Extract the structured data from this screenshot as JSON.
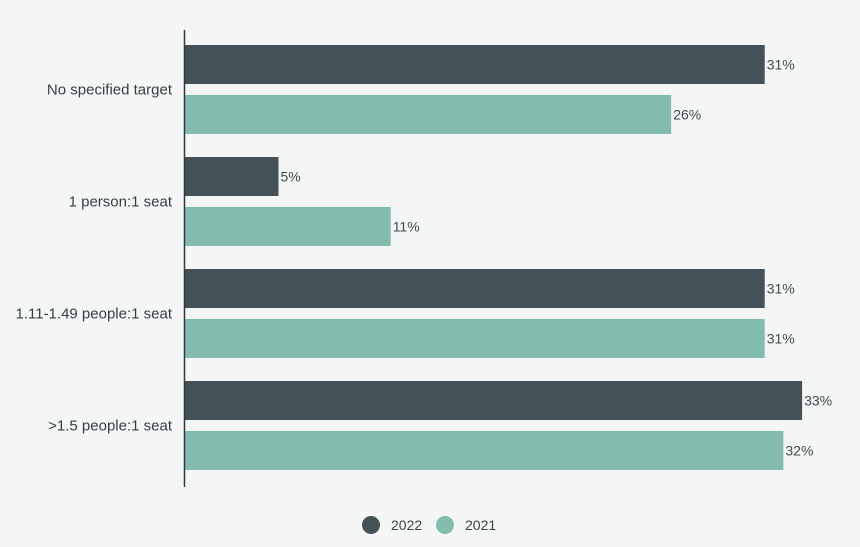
{
  "chart_data": {
    "type": "bar",
    "orientation": "horizontal",
    "categories": [
      "No specified target",
      "1 person:1 seat",
      "1.11-1.49 people:1 seat",
      ">1.5 people:1 seat"
    ],
    "series": [
      {
        "name": "2022",
        "color": "#445257",
        "values": [
          31,
          5,
          31,
          33
        ],
        "labels": [
          "31%",
          "5%",
          "31%",
          "33%"
        ]
      },
      {
        "name": "2021",
        "color": "#83bcae",
        "values": [
          26,
          11,
          31,
          32
        ],
        "labels": [
          "26%",
          "11%",
          "31%",
          "32%"
        ]
      }
    ],
    "xlim": [
      0,
      34
    ],
    "unit": "%",
    "grid": false,
    "legend_position": "bottom-center"
  }
}
